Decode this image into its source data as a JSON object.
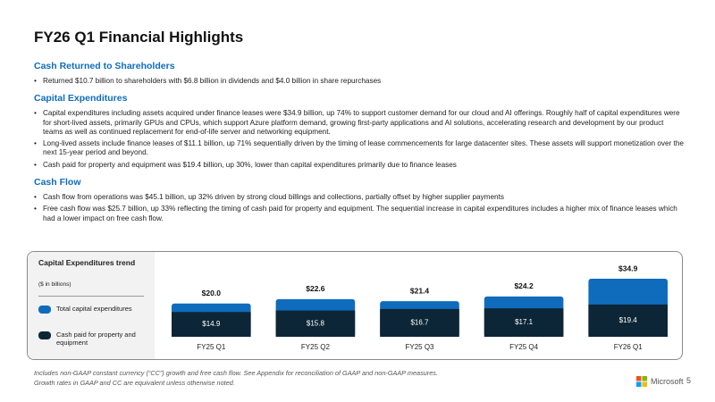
{
  "header": {
    "title": "FY26 Q1 Financial Highlights"
  },
  "sections": [
    {
      "heading": "Cash Returned to Shareholders",
      "bullets": [
        "Returned $10.7 billion to shareholders with $6.8 billion in dividends and $4.0 billion in share repurchases"
      ]
    },
    {
      "heading": "Capital Expenditures",
      "bullets": [
        "Capital expenditures including assets acquired under finance leases were $34.9 billion, up 74% to support customer demand for our cloud and AI offerings. Roughly half of capital expenditures were for short-lived assets, primarily GPUs and CPUs, which support Azure platform demand, growing first-party applications and AI solutions, accelerating research and development by our product teams as well as continued replacement for end-of-life server and networking equipment.",
        "Long-lived assets include finance leases of $11.1 billion, up 71% sequentially driven by the timing of lease commencements for large datacenter sites. These assets will support monetization over the next 15-year period and beyond.",
        "Cash paid for property and equipment was $19.4 billion, up 30%, lower than capital expenditures primarily due to finance leases"
      ]
    },
    {
      "heading": "Cash Flow",
      "bullets": [
        "Cash flow from operations was $45.1 billion, up 32% driven by strong cloud billings and collections, partially offset by higher supplier payments",
        "Free cash flow was $25.7 billion, up 33% reflecting the timing of cash paid for property and equipment. The sequential increase in capital expenditures includes a higher mix of finance leases which had a lower impact on free cash flow."
      ]
    }
  ],
  "chart_data": {
    "type": "bar",
    "title": "Capital Expenditures trend",
    "subtitle": "($ in billions)",
    "categories": [
      "FY25 Q1",
      "FY25 Q2",
      "FY25 Q3",
      "FY25 Q4",
      "FY26 Q1"
    ],
    "series": [
      {
        "name": "Total capital expenditures",
        "color": "#0f6cbd",
        "values": [
          20.0,
          22.6,
          21.4,
          24.2,
          34.9
        ],
        "value_labels": [
          "$20.0",
          "$22.6",
          "$21.4",
          "$24.2",
          "$34.9"
        ]
      },
      {
        "name": "Cash paid for property and equipment",
        "color": "#0d2637",
        "values": [
          14.9,
          15.8,
          16.7,
          17.1,
          19.4
        ],
        "value_labels": [
          "$14.9",
          "$15.8",
          "$16.7",
          "$17.1",
          "$19.4"
        ]
      }
    ]
  },
  "footer": {
    "notes": [
      "Includes non-GAAP constant currency (“CC”) growth and free cash flow. See Appendix for reconciliation of GAAP and non-GAAP measures.",
      "Growth rates in GAAP and CC are equivalent unless otherwise noted."
    ],
    "brand": "Microsoft",
    "page": 5
  }
}
